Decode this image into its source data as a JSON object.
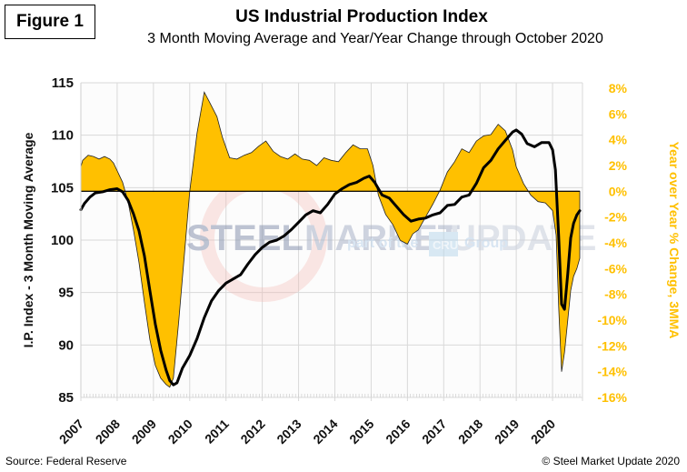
{
  "figure_label": "Figure 1",
  "source": "Source: Federal Reserve",
  "copyright": "© Steel Market Update 2020",
  "watermark": {
    "word1": "STEEL",
    "word2": "MARKET",
    "word3": "UPDATE",
    "tagline_pre": "part of the",
    "tagline_logo": "CRU",
    "tagline_post": "Group"
  },
  "colors": {
    "yoy_fill": "#FFC000",
    "ip_line": "#000000",
    "grid": "#d9d9d9",
    "right_axis": "#FFC000"
  },
  "chart_data": {
    "type": "area+line",
    "title": "US Industrial Production  Index",
    "subtitle": "3 Month Moving Average and Year/Year Change through October 2020",
    "xlabel": "",
    "ylabel": "I.P. Index - 3 Month Moving Average",
    "y2label": "Year over Year % Change, 3MMA",
    "x_ticks": [
      "2007",
      "2008",
      "2009",
      "2010",
      "2011",
      "2012",
      "2013",
      "2014",
      "2015",
      "2016",
      "2017",
      "2018",
      "2019",
      "2020"
    ],
    "xlim": [
      2007.0,
      2020.75
    ],
    "ylim": [
      85,
      115
    ],
    "y_ticks": [
      85,
      90,
      95,
      100,
      105,
      110,
      115
    ],
    "y2lim": [
      -16,
      8
    ],
    "y2_ticks": [
      "8%",
      "6%",
      "4%",
      "2%",
      "0%",
      "-2%",
      "-4%",
      "-6%",
      "-8%",
      "-10%",
      "-12%",
      "-14%",
      "-16%"
    ],
    "y2_tick_values": [
      8,
      6,
      4,
      2,
      0,
      -2,
      -4,
      -6,
      -8,
      -10,
      -12,
      -14,
      -16
    ],
    "grid": true,
    "series": [
      {
        "name": "I.P. Index 3MMA",
        "axis": "left",
        "style": "line",
        "x": [
          2007.0,
          2007.1,
          2007.25,
          2007.4,
          2007.6,
          2007.8,
          2008.0,
          2008.15,
          2008.3,
          2008.45,
          2008.6,
          2008.75,
          2008.9,
          2009.05,
          2009.2,
          2009.35,
          2009.45,
          2009.55,
          2009.65,
          2009.8,
          2010.0,
          2010.2,
          2010.4,
          2010.6,
          2010.8,
          2011.0,
          2011.2,
          2011.4,
          2011.6,
          2011.8,
          2012.0,
          2012.2,
          2012.4,
          2012.6,
          2012.8,
          2013.0,
          2013.2,
          2013.4,
          2013.6,
          2013.8,
          2014.0,
          2014.2,
          2014.4,
          2014.6,
          2014.8,
          2014.95,
          2015.1,
          2015.3,
          2015.5,
          2015.7,
          2015.9,
          2016.1,
          2016.3,
          2016.5,
          2016.7,
          2016.9,
          2017.1,
          2017.3,
          2017.5,
          2017.7,
          2017.9,
          2018.1,
          2018.3,
          2018.5,
          2018.7,
          2018.9,
          2019.0,
          2019.15,
          2019.3,
          2019.5,
          2019.7,
          2019.9,
          2020.0,
          2020.08,
          2020.17,
          2020.25,
          2020.33,
          2020.42,
          2020.5,
          2020.58,
          2020.67,
          2020.75
        ],
        "values": [
          102.9,
          103.5,
          104.1,
          104.5,
          104.6,
          104.8,
          104.9,
          104.6,
          103.8,
          102.5,
          100.9,
          98.5,
          95.2,
          92.0,
          89.5,
          87.6,
          86.6,
          86.2,
          86.4,
          87.8,
          89.0,
          90.6,
          92.6,
          94.2,
          95.2,
          95.9,
          96.3,
          96.7,
          97.7,
          98.6,
          99.3,
          99.8,
          100.0,
          100.4,
          101.0,
          101.7,
          102.4,
          102.8,
          102.6,
          103.4,
          104.4,
          104.9,
          105.3,
          105.5,
          105.9,
          106.1,
          105.5,
          104.3,
          104.0,
          103.2,
          102.4,
          101.8,
          102.0,
          102.1,
          102.4,
          102.6,
          103.3,
          103.4,
          104.1,
          104.3,
          105.4,
          106.9,
          107.6,
          108.7,
          109.5,
          110.3,
          110.5,
          110.1,
          109.2,
          108.9,
          109.3,
          109.3,
          108.6,
          106.7,
          100.3,
          93.9,
          93.4,
          96.8,
          100.2,
          101.6,
          102.4,
          102.8
        ]
      },
      {
        "name": "Year over Year % Change, 3MMA",
        "axis": "right",
        "style": "area",
        "x": [
          2007.0,
          2007.05,
          2007.2,
          2007.35,
          2007.5,
          2007.65,
          2007.8,
          2007.9,
          2008.0,
          2008.15,
          2008.3,
          2008.45,
          2008.6,
          2008.75,
          2008.9,
          2009.05,
          2009.2,
          2009.35,
          2009.45,
          2009.55,
          2009.7,
          2009.85,
          2010.0,
          2010.2,
          2010.4,
          2010.55,
          2010.75,
          2010.9,
          2011.1,
          2011.3,
          2011.5,
          2011.7,
          2011.9,
          2012.1,
          2012.3,
          2012.5,
          2012.7,
          2012.9,
          2013.1,
          2013.3,
          2013.5,
          2013.7,
          2013.9,
          2014.1,
          2014.3,
          2014.5,
          2014.7,
          2014.9,
          2015.05,
          2015.2,
          2015.4,
          2015.6,
          2015.8,
          2016.0,
          2016.15,
          2016.3,
          2016.5,
          2016.7,
          2016.9,
          2017.1,
          2017.3,
          2017.5,
          2017.7,
          2017.9,
          2018.1,
          2018.3,
          2018.5,
          2018.7,
          2018.9,
          2019.0,
          2019.2,
          2019.4,
          2019.6,
          2019.8,
          2020.0,
          2020.1,
          2020.17,
          2020.25,
          2020.33,
          2020.42,
          2020.5,
          2020.58,
          2020.67,
          2020.75
        ],
        "values": [
          1.9,
          2.4,
          2.8,
          2.7,
          2.5,
          2.7,
          2.5,
          2.2,
          1.6,
          0.7,
          -0.8,
          -3.0,
          -5.5,
          -8.6,
          -11.5,
          -13.5,
          -14.5,
          -15.0,
          -15.2,
          -14.5,
          -10.0,
          -5.0,
          0.0,
          4.5,
          7.7,
          6.9,
          5.8,
          4.2,
          2.6,
          2.5,
          2.8,
          3.0,
          3.5,
          3.9,
          3.1,
          2.7,
          2.5,
          2.9,
          2.5,
          2.4,
          2.0,
          2.6,
          2.4,
          2.3,
          3.0,
          3.6,
          3.3,
          3.3,
          2.0,
          -0.3,
          -1.8,
          -2.6,
          -3.8,
          -4.1,
          -3.3,
          -3.0,
          -2.0,
          -1.0,
          0.1,
          1.5,
          2.3,
          3.3,
          3.0,
          3.9,
          4.3,
          4.4,
          5.2,
          4.7,
          3.2,
          1.9,
          0.6,
          -0.3,
          -0.8,
          -0.9,
          -1.5,
          -3.4,
          -9.0,
          -14.0,
          -12.5,
          -10.0,
          -7.7,
          -6.6,
          -6.0,
          -5.2
        ]
      }
    ]
  }
}
